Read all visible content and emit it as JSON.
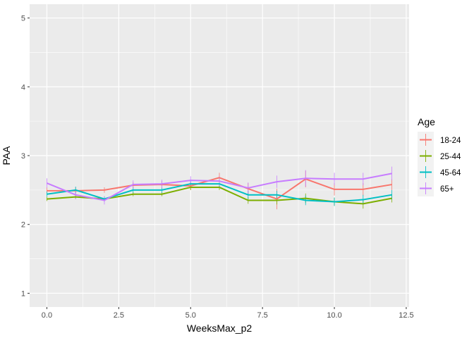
{
  "chart_data": {
    "type": "line",
    "xlabel": "WeeksMax_p2",
    "ylabel": "PAA",
    "xlim": [
      -0.6,
      12.6
    ],
    "ylim": [
      0.8,
      5.2
    ],
    "x_ticks": [
      0,
      2.5,
      5,
      7.5,
      10,
      12.5
    ],
    "x_tick_labels": [
      "0.0",
      "2.5",
      "5.0",
      "7.5",
      "10.0",
      "12.5"
    ],
    "y_ticks": [
      1,
      2,
      3,
      4,
      5
    ],
    "y_tick_labels": [
      "1",
      "2",
      "3",
      "4",
      "5"
    ],
    "x": [
      0,
      1,
      2,
      3,
      4,
      5,
      6,
      7,
      8,
      9,
      10,
      11,
      12
    ],
    "grid": true,
    "panel_background": "#ebebeb",
    "legend": {
      "title": "Age",
      "position": "right"
    },
    "series": [
      {
        "name": "18-24",
        "color": "#F8766D",
        "values": [
          2.49,
          2.49,
          2.5,
          2.57,
          2.58,
          2.56,
          2.68,
          2.52,
          2.37,
          2.66,
          2.51,
          2.51,
          2.58
        ],
        "err": [
          0.05,
          0.05,
          0.04,
          0.04,
          0.05,
          0.06,
          0.07,
          0.08,
          0.15,
          0.12,
          0.09,
          0.09,
          0.08
        ]
      },
      {
        "name": "25-44",
        "color": "#7CAE00",
        "values": [
          2.37,
          2.4,
          2.37,
          2.44,
          2.44,
          2.54,
          2.54,
          2.35,
          2.35,
          2.38,
          2.33,
          2.3,
          2.38
        ],
        "err": [
          0.03,
          0.03,
          0.03,
          0.03,
          0.03,
          0.04,
          0.04,
          0.05,
          0.06,
          0.07,
          0.06,
          0.07,
          0.06
        ]
      },
      {
        "name": "45-64",
        "color": "#00BFC4",
        "values": [
          2.44,
          2.5,
          2.37,
          2.5,
          2.5,
          2.59,
          2.59,
          2.43,
          2.43,
          2.35,
          2.33,
          2.36,
          2.43
        ],
        "err": [
          0.04,
          0.05,
          0.04,
          0.04,
          0.04,
          0.05,
          0.05,
          0.06,
          0.06,
          0.07,
          0.06,
          0.07,
          0.07
        ]
      },
      {
        "name": "65+",
        "color": "#C77CFF",
        "values": [
          2.6,
          2.43,
          2.35,
          2.58,
          2.59,
          2.64,
          2.63,
          2.53,
          2.62,
          2.67,
          2.66,
          2.66,
          2.74
        ],
        "err": [
          0.07,
          0.06,
          0.06,
          0.06,
          0.06,
          0.06,
          0.07,
          0.08,
          0.09,
          0.12,
          0.09,
          0.09,
          0.1
        ]
      }
    ]
  }
}
